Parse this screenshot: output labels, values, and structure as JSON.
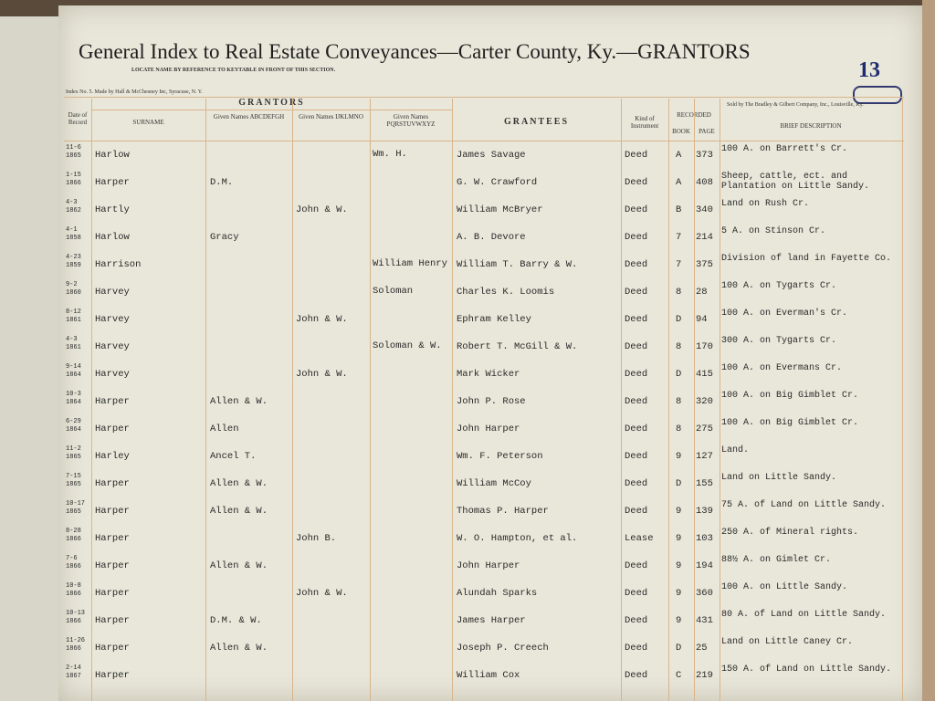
{
  "header": {
    "title": "General Index to Real Estate Conveyances—Carter County, Ky.—GRANTORS",
    "page_number": "13",
    "instruction": "LOCATE NAME BY REFERENCE TO KEYTABLE IN FRONT OF THIS SECTION.",
    "maker": "Index No. 5. Made by Hall & McChesney Inc, Syracuse, N. Y.",
    "seller": "Sold by The Bradley & Gilbert Company, Inc., Louisville, Ky."
  },
  "columns": {
    "date": "Date of Record",
    "grantors": "GRANTORS",
    "surname": "SURNAME",
    "given_abcdefgh": "Given Names ABCDEFGH",
    "given_ijklmno": "Given Names IJKLMNO",
    "given_pqrstuvwxyz": "Given Names PQRSTUVWXYZ",
    "grantees": "GRANTEES",
    "kind": "Kind of Instrument",
    "recorded": "RECORDED",
    "book": "BOOK",
    "page": "PAGE",
    "description": "BRIEF DESCRIPTION"
  },
  "rows": [
    {
      "date": "11-6 1865",
      "surname": "Harlow",
      "pqrstuvwxyz": "Wm. H.",
      "grantee": "James Savage",
      "kind": "Deed",
      "book": "A",
      "page": "373",
      "description": "100 A. on Barrett's Cr."
    },
    {
      "date": "1-15 1866",
      "surname": "Harper",
      "abcdefgh": "D.M.",
      "grantee": "G. W. Crawford",
      "kind": "Deed",
      "book": "A",
      "page": "408",
      "description": "Sheep, cattle, ect. and Plantation on Little Sandy."
    },
    {
      "date": "4-3 1862",
      "surname": "Hartly",
      "ijklmno": "John & W.",
      "grantee": "William McBryer",
      "kind": "Deed",
      "book": "B",
      "page": "340",
      "description": "Land on Rush Cr."
    },
    {
      "date": "4-1 1858",
      "surname": "Harlow",
      "abcdefgh": "Gracy",
      "grantee": "A. B. Devore",
      "kind": "Deed",
      "book": "7",
      "page": "214",
      "description": "5 A. on Stinson Cr."
    },
    {
      "date": "4-23 1859",
      "surname": "Harrison",
      "pqrstuvwxyz": "William Henry",
      "grantee": "William T. Barry & W.",
      "kind": "Deed",
      "book": "7",
      "page": "375",
      "description": "Division of land in Fayette Co."
    },
    {
      "date": "9-2 1860",
      "surname": "Harvey",
      "pqrstuvwxyz": "Soloman",
      "grantee": "Charles K. Loomis",
      "kind": "Deed",
      "book": "8",
      "page": "28",
      "description": "100 A. on Tygarts Cr."
    },
    {
      "date": "8-12 1861",
      "surname": "Harvey",
      "ijklmno": "John & W.",
      "grantee": "Ephram Kelley",
      "kind": "Deed",
      "book": "D",
      "page": "94",
      "description": "100 A. on Everman's Cr."
    },
    {
      "date": "4-3 1861",
      "surname": "Harvey",
      "pqrstuvwxyz": "Soloman & W.",
      "grantee": "Robert T. McGill & W.",
      "kind": "Deed",
      "book": "8",
      "page": "170",
      "description": "300 A. on Tygarts Cr."
    },
    {
      "date": "9-14 1864",
      "surname": "Harvey",
      "ijklmno": "John & W.",
      "grantee": "Mark Wicker",
      "kind": "Deed",
      "book": "D",
      "page": "415",
      "description": "100 A. on Evermans Cr."
    },
    {
      "date": "10-3 1864",
      "surname": "Harper",
      "abcdefgh": "Allen & W.",
      "grantee": "John P. Rose",
      "kind": "Deed",
      "book": "8",
      "page": "320",
      "description": "100 A. on Big Gimblet Cr."
    },
    {
      "date": "6-29 1864",
      "surname": "Harper",
      "abcdefgh": "Allen",
      "grantee": "John Harper",
      "kind": "Deed",
      "book": "8",
      "page": "275",
      "description": "100 A. on Big Gimblet Cr."
    },
    {
      "date": "11-2 1865",
      "surname": "Harley",
      "abcdefgh": "Ancel T.",
      "grantee": "Wm. F. Peterson",
      "kind": "Deed",
      "book": "9",
      "page": "127",
      "description": "Land."
    },
    {
      "date": "7-15 1865",
      "surname": "Harper",
      "abcdefgh": "Allen & W.",
      "grantee": "William McCoy",
      "kind": "Deed",
      "book": "D",
      "page": "155",
      "description": "Land on Little Sandy."
    },
    {
      "date": "10-17 1865",
      "surname": "Harper",
      "abcdefgh": "Allen & W.",
      "grantee": "Thomas P. Harper",
      "kind": "Deed",
      "book": "9",
      "page": "139",
      "description": "75 A. of Land on Little Sandy."
    },
    {
      "date": "8-28 1866",
      "surname": "Harper",
      "ijklmno": "John B.",
      "grantee": "W. O. Hampton, et al.",
      "kind": "Lease",
      "book": "9",
      "page": "103",
      "description": "250 A. of Mineral rights."
    },
    {
      "date": "7-6 1866",
      "surname": "Harper",
      "abcdefgh": "Allen & W.",
      "grantee": "John Harper",
      "kind": "Deed",
      "book": "9",
      "page": "194",
      "description": "88½ A. on Gimlet Cr."
    },
    {
      "date": "10-8 1866",
      "surname": "Harper",
      "ijklmno": "John & W.",
      "grantee": "Alundah Sparks",
      "kind": "Deed",
      "book": "9",
      "page": "360",
      "description": "100 A. on Little Sandy."
    },
    {
      "date": "10-13 1866",
      "surname": "Harper",
      "abcdefgh": "D.M. & W.",
      "grantee": "James Harper",
      "kind": "Deed",
      "book": "9",
      "page": "431",
      "description": "80 A. of Land on Little Sandy."
    },
    {
      "date": "11-26 1866",
      "surname": "Harper",
      "abcdefgh": "Allen & W.",
      "grantee": "Joseph P. Creech",
      "kind": "Deed",
      "book": "D",
      "page": "25",
      "description": "Land on Little Caney Cr."
    },
    {
      "date": "2-14 1867",
      "surname": "Harper",
      "grantee": "William Cox",
      "kind": "Deed",
      "book": "C",
      "page": "219",
      "description": "150 A. of Land on Little Sandy."
    }
  ]
}
